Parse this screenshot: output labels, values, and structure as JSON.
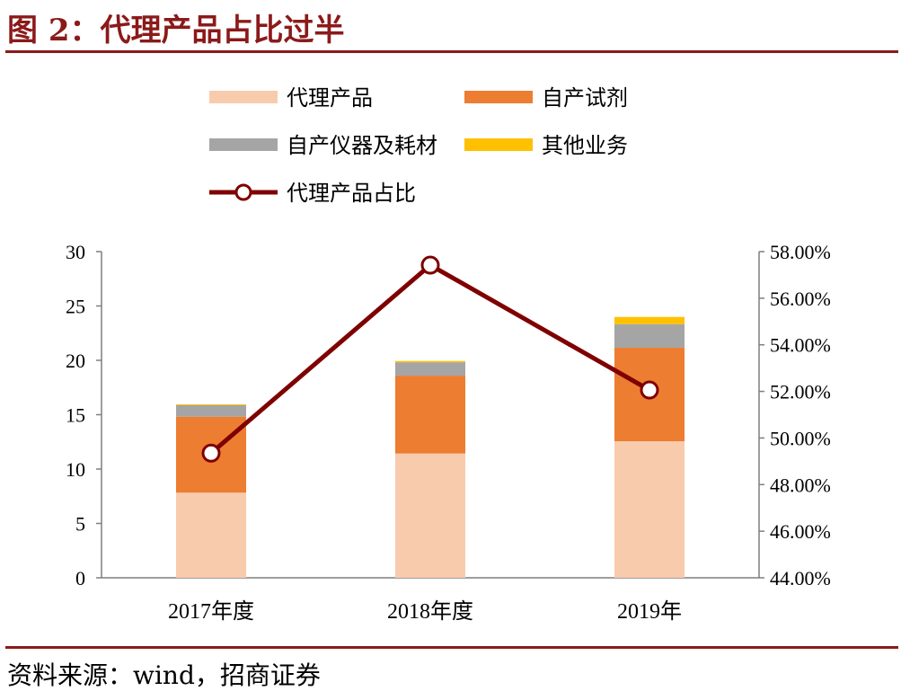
{
  "title": "图 2：代理产品占比过半",
  "source": "资料来源：wind，招商证券",
  "chart_data": {
    "type": "bar",
    "stacked": true,
    "categories": [
      "2017年度",
      "2018年度",
      "2019年"
    ],
    "series": [
      {
        "name": "代理产品",
        "type": "bar",
        "axis": "left",
        "color": "#f8cbad",
        "values": [
          7.83,
          11.43,
          12.56
        ]
      },
      {
        "name": "自产试剂",
        "type": "bar",
        "axis": "left",
        "color": "#ed7d31",
        "values": [
          6.99,
          7.16,
          8.6
        ]
      },
      {
        "name": "自产仪器及耗材",
        "type": "bar",
        "axis": "left",
        "color": "#a5a5a5",
        "values": [
          1.05,
          1.23,
          2.17
        ]
      },
      {
        "name": "其他业务",
        "type": "bar",
        "axis": "left",
        "color": "#ffc000",
        "values": [
          0.08,
          0.12,
          0.66
        ]
      },
      {
        "name": "代理产品占比",
        "type": "line",
        "axis": "right",
        "color": "#7f0000",
        "unit": "%",
        "values": [
          49.35,
          57.42,
          52.06
        ]
      }
    ],
    "y_left": {
      "range": [
        0,
        30
      ],
      "ticks": [
        "0",
        "5",
        "10",
        "15",
        "20",
        "25",
        "30"
      ]
    },
    "y_right": {
      "range": [
        44,
        58
      ],
      "ticks": [
        "44.00%",
        "46.00%",
        "48.00%",
        "50.00%",
        "52.00%",
        "54.00%",
        "56.00%",
        "58.00%"
      ]
    },
    "grid": false,
    "legend_position": "top"
  }
}
